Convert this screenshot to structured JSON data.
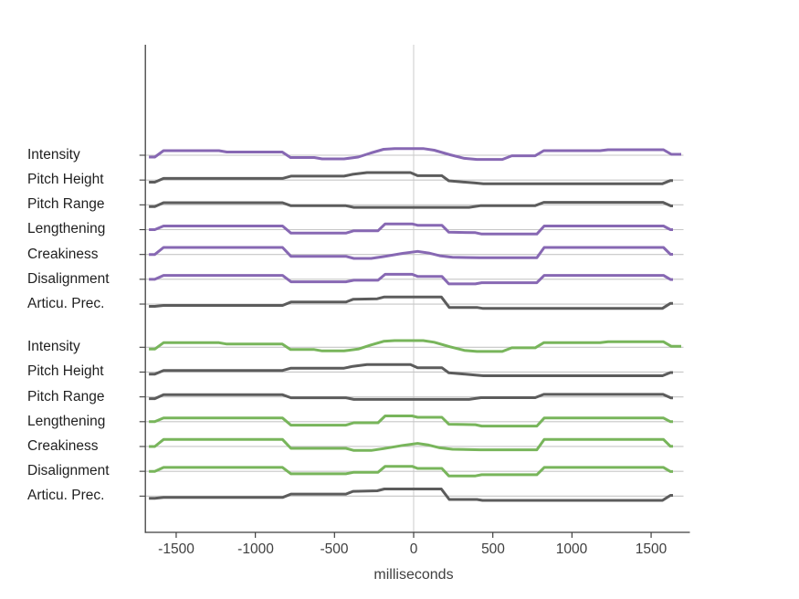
{
  "chart_data": {
    "type": "line",
    "description": "Stacked step-line profiles of prosodic features around time 0, two stimulus groups",
    "x_axis": {
      "label": "milliseconds",
      "tick_values": [
        -1500,
        -1000,
        -500,
        0,
        500,
        1000,
        1500
      ],
      "tick_labels": [
        "-1500",
        "-1000",
        "-500",
        "0",
        "500",
        "1000",
        "1500"
      ],
      "range_ms": [
        -1700,
        1700
      ]
    },
    "grid": "per-row thin baselines plus vertical zero line",
    "legend": "none",
    "colors": {
      "purple": "#8768b3",
      "green": "#78b55b",
      "gray": "#5c5c5c",
      "baseline": "#c6c6c6",
      "zero_line": "#d4d4d4",
      "axis": "#3f3f3f"
    },
    "groups": [
      {
        "name": "group-1",
        "accent": "purple",
        "rows": [
          {
            "label": "Intensity",
            "color": "purple",
            "shape": "intensity"
          },
          {
            "label": "Pitch Height",
            "color": "gray",
            "shape": "pitch_height"
          },
          {
            "label": "Pitch Range",
            "color": "gray",
            "shape": "pitch_range"
          },
          {
            "label": "Lengthening",
            "color": "purple",
            "shape": "lengthening"
          },
          {
            "label": "Creakiness",
            "color": "purple",
            "shape": "creakiness"
          },
          {
            "label": "Disalignment",
            "color": "purple",
            "shape": "disalignment"
          },
          {
            "label": "Articu. Prec.",
            "color": "gray",
            "shape": "articulation"
          }
        ]
      },
      {
        "name": "group-2",
        "accent": "green",
        "rows": [
          {
            "label": "Intensity",
            "color": "green",
            "shape": "intensity"
          },
          {
            "label": "Pitch Height",
            "color": "gray",
            "shape": "pitch_height"
          },
          {
            "label": "Pitch Range",
            "color": "gray",
            "shape": "pitch_range"
          },
          {
            "label": "Lengthening",
            "color": "green",
            "shape": "lengthening"
          },
          {
            "label": "Creakiness",
            "color": "green",
            "shape": "creakiness"
          },
          {
            "label": "Disalignment",
            "color": "green",
            "shape": "disalignment"
          },
          {
            "label": "Articu. Prec.",
            "color": "gray",
            "shape": "articulation"
          }
        ]
      }
    ],
    "shapes": {
      "comment": "vertices [ms, offset_px_above_row_baseline]",
      "intensity": [
        [
          -1672,
          -2
        ],
        [
          -1635,
          -2
        ],
        [
          -1580,
          5
        ],
        [
          -1230,
          5
        ],
        [
          -1180,
          3.5
        ],
        [
          -830,
          3.5
        ],
        [
          -778,
          -2.5
        ],
        [
          -628,
          -2.5
        ],
        [
          -578,
          -4
        ],
        [
          -440,
          -4
        ],
        [
          -350,
          -2
        ],
        [
          -270,
          2.5
        ],
        [
          -190,
          6.5
        ],
        [
          -120,
          7.3
        ],
        [
          60,
          7.3
        ],
        [
          130,
          5.5
        ],
        [
          230,
          0.5
        ],
        [
          320,
          -3.4
        ],
        [
          400,
          -4.6
        ],
        [
          560,
          -4.6
        ],
        [
          620,
          -0.6
        ],
        [
          768,
          -0.6
        ],
        [
          822,
          5
        ],
        [
          1178,
          5
        ],
        [
          1228,
          6
        ],
        [
          1578,
          6
        ],
        [
          1628,
          1
        ],
        [
          1690,
          1
        ]
      ],
      "pitch_height": [
        [
          -1672,
          -2.3
        ],
        [
          -1635,
          -2.3
        ],
        [
          -1580,
          1.8
        ],
        [
          -828,
          1.8
        ],
        [
          -775,
          4.3
        ],
        [
          -440,
          4.3
        ],
        [
          -385,
          6.3
        ],
        [
          -295,
          8.2
        ],
        [
          -20,
          8.2
        ],
        [
          25,
          4.8
        ],
        [
          178,
          4.8
        ],
        [
          222,
          -0.8
        ],
        [
          390,
          -3.2
        ],
        [
          440,
          -4
        ],
        [
          1572,
          -4
        ],
        [
          1622,
          -0.5
        ],
        [
          1638,
          -0.5
        ]
      ],
      "pitch_range": [
        [
          -1672,
          -2
        ],
        [
          -1635,
          -2
        ],
        [
          -1580,
          2.3
        ],
        [
          -828,
          2.3
        ],
        [
          -775,
          -1
        ],
        [
          -428,
          -1
        ],
        [
          -378,
          -2.8
        ],
        [
          350,
          -2.8
        ],
        [
          425,
          -0.9
        ],
        [
          768,
          -0.9
        ],
        [
          822,
          2.7
        ],
        [
          1575,
          2.7
        ],
        [
          1625,
          -1.2
        ],
        [
          1638,
          -1.2
        ]
      ],
      "lengthening": [
        [
          -1672,
          0
        ],
        [
          -1635,
          0
        ],
        [
          -1580,
          4
        ],
        [
          -828,
          4
        ],
        [
          -775,
          -3.8
        ],
        [
          -428,
          -3.8
        ],
        [
          -378,
          -1.2
        ],
        [
          -225,
          -1.2
        ],
        [
          -180,
          6.3
        ],
        [
          -10,
          6.3
        ],
        [
          25,
          4.8
        ],
        [
          178,
          4.8
        ],
        [
          222,
          -2.8
        ],
        [
          390,
          -3.3
        ],
        [
          430,
          -4.8
        ],
        [
          778,
          -4.8
        ],
        [
          825,
          4
        ],
        [
          1578,
          4
        ],
        [
          1622,
          0
        ],
        [
          1638,
          0
        ]
      ],
      "creakiness": [
        [
          -1672,
          0
        ],
        [
          -1635,
          0
        ],
        [
          -1580,
          7.7
        ],
        [
          -828,
          7.7
        ],
        [
          -775,
          -2
        ],
        [
          -428,
          -2
        ],
        [
          -378,
          -4.3
        ],
        [
          -268,
          -4.3
        ],
        [
          -190,
          -2.3
        ],
        [
          -70,
          1.2
        ],
        [
          25,
          3.4
        ],
        [
          95,
          1.6
        ],
        [
          165,
          -1.4
        ],
        [
          245,
          -3
        ],
        [
          420,
          -3.6
        ],
        [
          778,
          -3.6
        ],
        [
          825,
          7.7
        ],
        [
          1578,
          7.7
        ],
        [
          1622,
          0.2
        ],
        [
          1638,
          0.2
        ]
      ],
      "disalignment": [
        [
          -1672,
          0
        ],
        [
          -1635,
          0
        ],
        [
          -1580,
          4.3
        ],
        [
          -828,
          4.3
        ],
        [
          -775,
          -2.7
        ],
        [
          -428,
          -2.7
        ],
        [
          -378,
          -1
        ],
        [
          -225,
          -1
        ],
        [
          -180,
          5.5
        ],
        [
          -10,
          5.5
        ],
        [
          25,
          3.2
        ],
        [
          178,
          3.2
        ],
        [
          222,
          -5
        ],
        [
          390,
          -5
        ],
        [
          430,
          -3.7
        ],
        [
          778,
          -3.7
        ],
        [
          825,
          4.3
        ],
        [
          1578,
          4.3
        ],
        [
          1622,
          -0.2
        ],
        [
          1638,
          -0.2
        ]
      ],
      "articulation": [
        [
          -1672,
          -2.5
        ],
        [
          -1635,
          -2.5
        ],
        [
          -1580,
          -1.5
        ],
        [
          -828,
          -1.5
        ],
        [
          -775,
          2.2
        ],
        [
          -428,
          2.2
        ],
        [
          -383,
          5.2
        ],
        [
          -230,
          5.8
        ],
        [
          -185,
          7.8
        ],
        [
          175,
          7.8
        ],
        [
          225,
          -3.7
        ],
        [
          400,
          -3.7
        ],
        [
          435,
          -4.7
        ],
        [
          1572,
          -4.7
        ],
        [
          1622,
          0.8
        ],
        [
          1638,
          0.8
        ]
      ]
    }
  }
}
